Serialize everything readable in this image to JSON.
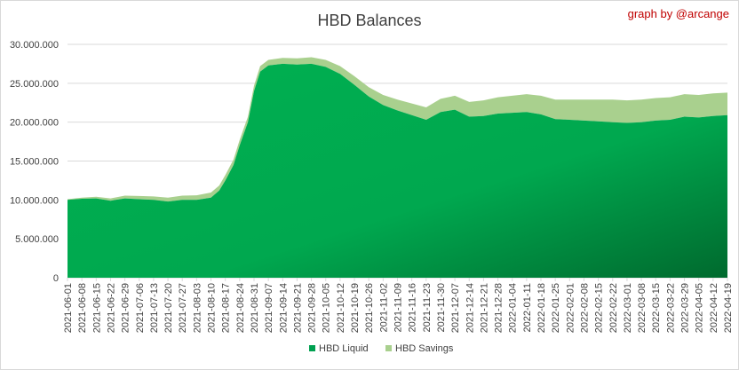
{
  "chart_data": {
    "type": "area",
    "stacked": true,
    "title": "HBD Balances",
    "watermark": "graph by @arcange",
    "ylim": [
      0,
      30000000
    ],
    "yticks": [
      "0",
      "5.000.000",
      "10.000.000",
      "15.000.000",
      "20.000.000",
      "25.000.000",
      "30.000.000"
    ],
    "ytick_values": [
      0,
      5000000,
      10000000,
      15000000,
      20000000,
      25000000,
      30000000
    ],
    "grid": true,
    "legend_position": "bottom",
    "x_start": "2021-06-01",
    "x_end": "2022-04-19",
    "xticks": [
      "2021-06-01",
      "2021-06-08",
      "2021-06-15",
      "2021-06-22",
      "2021-06-29",
      "2021-07-06",
      "2021-07-13",
      "2021-07-20",
      "2021-07-27",
      "2021-08-03",
      "2021-08-10",
      "2021-08-17",
      "2021-08-24",
      "2021-08-31",
      "2021-09-07",
      "2021-09-14",
      "2021-09-21",
      "2021-09-28",
      "2021-10-05",
      "2021-10-12",
      "2021-10-19",
      "2021-10-26",
      "2021-11-02",
      "2021-11-09",
      "2021-11-16",
      "2021-11-23",
      "2021-11-30",
      "2021-12-07",
      "2021-12-14",
      "2021-12-21",
      "2021-12-28",
      "2022-01-04",
      "2022-01-11",
      "2022-01-18",
      "2022-01-25",
      "2022-02-01",
      "2022-02-08",
      "2022-02-15",
      "2022-02-22",
      "2022-03-01",
      "2022-03-08",
      "2022-03-15",
      "2022-03-22",
      "2022-03-29",
      "2022-04-05",
      "2022-04-12",
      "2022-04-19"
    ],
    "x": [
      "2021-06-01",
      "2021-06-08",
      "2021-06-15",
      "2021-06-22",
      "2021-06-29",
      "2021-07-06",
      "2021-07-13",
      "2021-07-20",
      "2021-07-27",
      "2021-08-03",
      "2021-08-10",
      "2021-08-14",
      "2021-08-17",
      "2021-08-21",
      "2021-08-24",
      "2021-08-28",
      "2021-08-31",
      "2021-09-03",
      "2021-09-07",
      "2021-09-14",
      "2021-09-21",
      "2021-09-28",
      "2021-10-05",
      "2021-10-12",
      "2021-10-19",
      "2021-10-26",
      "2021-11-02",
      "2021-11-09",
      "2021-11-16",
      "2021-11-23",
      "2021-11-30",
      "2021-12-07",
      "2021-12-14",
      "2021-12-21",
      "2021-12-28",
      "2022-01-04",
      "2022-01-11",
      "2022-01-18",
      "2022-01-25",
      "2022-02-01",
      "2022-02-08",
      "2022-02-15",
      "2022-02-22",
      "2022-03-01",
      "2022-03-08",
      "2022-03-15",
      "2022-03-22",
      "2022-03-29",
      "2022-04-05",
      "2022-04-12",
      "2022-04-19"
    ],
    "series": [
      {
        "name": "HBD Liquid",
        "color": "#00a84f",
        "values": [
          10000000,
          10150000,
          10200000,
          9900000,
          10200000,
          10100000,
          10000000,
          9800000,
          10000000,
          10000000,
          10300000,
          11200000,
          12500000,
          14500000,
          17000000,
          20000000,
          24000000,
          26500000,
          27300000,
          27500000,
          27400000,
          27500000,
          27100000,
          26200000,
          24800000,
          23300000,
          22200000,
          21500000,
          20900000,
          20300000,
          21300000,
          21600000,
          20700000,
          20800000,
          21100000,
          21200000,
          21300000,
          21000000,
          20400000,
          20300000,
          20200000,
          20100000,
          20000000,
          19900000,
          20000000,
          20200000,
          20300000,
          20700000,
          20600000,
          20800000,
          20900000
        ]
      },
      {
        "name": "HBD Savings",
        "color": "#a9d08e",
        "values": [
          100000,
          150000,
          200000,
          300000,
          350000,
          400000,
          450000,
          500000,
          550000,
          600000,
          650000,
          650000,
          700000,
          700000,
          700000,
          700000,
          700000,
          700000,
          700000,
          750000,
          800000,
          850000,
          900000,
          1000000,
          1100000,
          1200000,
          1300000,
          1400000,
          1500000,
          1600000,
          1700000,
          1800000,
          1900000,
          2000000,
          2100000,
          2200000,
          2300000,
          2400000,
          2500000,
          2600000,
          2700000,
          2800000,
          2900000,
          2900000,
          2900000,
          2900000,
          2900000,
          2900000,
          2900000,
          2900000,
          2900000
        ]
      }
    ]
  }
}
